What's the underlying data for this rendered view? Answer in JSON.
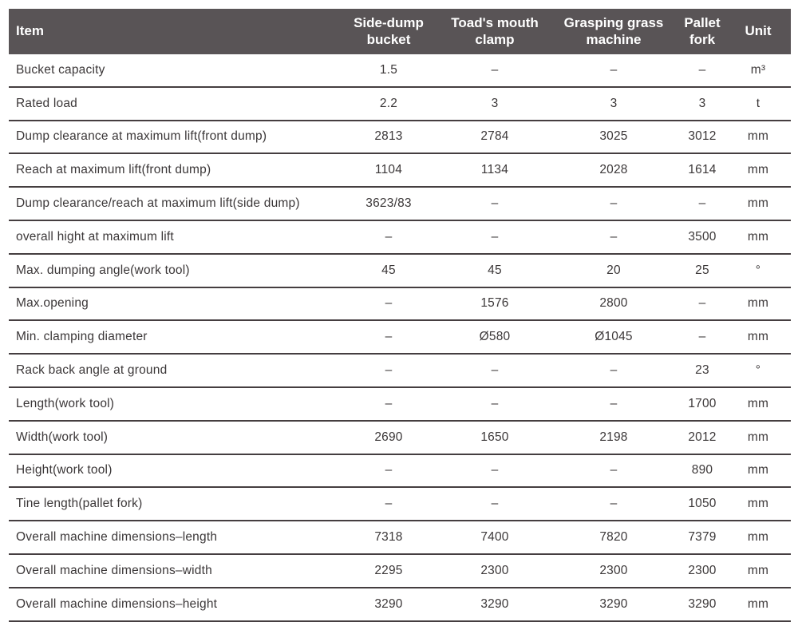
{
  "table": {
    "columns": [
      {
        "id": "item",
        "label": "Item"
      },
      {
        "id": "side_dump_bucket",
        "label": "Side-dump bucket"
      },
      {
        "id": "toads_mouth_clamp",
        "label": "Toad's mouth clamp"
      },
      {
        "id": "grasping_grass_machine",
        "label": "Grasping grass machine"
      },
      {
        "id": "pallet_fork",
        "label": "Pallet fork"
      },
      {
        "id": "unit",
        "label": "Unit"
      }
    ],
    "rows": [
      {
        "item": "Bucket capacity",
        "values": [
          "1.5",
          "–",
          "–",
          "–"
        ],
        "unit": "m³"
      },
      {
        "item": "Rated load",
        "values": [
          "2.2",
          "3",
          "3",
          "3"
        ],
        "unit": "t"
      },
      {
        "item": "Dump clearance at maximum lift(front dump)",
        "values": [
          "2813",
          "2784",
          "3025",
          "3012"
        ],
        "unit": "mm"
      },
      {
        "item": "Reach at maximum lift(front dump)",
        "values": [
          "1104",
          "1134",
          "2028",
          "1614"
        ],
        "unit": "mm"
      },
      {
        "item": "Dump clearance/reach at maximum lift(side dump)",
        "values": [
          "3623/83",
          "–",
          "–",
          "–"
        ],
        "unit": "mm"
      },
      {
        "item": "overall hight at maximum lift",
        "values": [
          "–",
          "–",
          "–",
          "3500"
        ],
        "unit": "mm"
      },
      {
        "item": "Max. dumping angle(work tool)",
        "values": [
          "45",
          "45",
          "20",
          "25"
        ],
        "unit": "°"
      },
      {
        "item": "Max.opening",
        "values": [
          "–",
          "1576",
          "2800",
          "–"
        ],
        "unit": "mm"
      },
      {
        "item": "Min. clamping diameter",
        "values": [
          "–",
          "Ø580",
          "Ø1045",
          "–"
        ],
        "unit": "mm"
      },
      {
        "item": "Rack back angle at ground",
        "values": [
          "–",
          "–",
          "–",
          "23"
        ],
        "unit": "°"
      },
      {
        "item": "Length(work tool)",
        "values": [
          "–",
          "–",
          "–",
          "1700"
        ],
        "unit": "mm"
      },
      {
        "item": "Width(work tool)",
        "values": [
          "2690",
          "1650",
          "2198",
          "2012"
        ],
        "unit": "mm"
      },
      {
        "item": "Height(work tool)",
        "values": [
          "–",
          "–",
          "–",
          "890"
        ],
        "unit": "mm"
      },
      {
        "item": "Tine length(pallet fork)",
        "values": [
          "–",
          "–",
          "–",
          "1050"
        ],
        "unit": "mm"
      },
      {
        "item": "Overall machine dimensions–length",
        "values": [
          "7318",
          "7400",
          "7820",
          "7379"
        ],
        "unit": "mm"
      },
      {
        "item": "Overall machine dimensions–width",
        "values": [
          "2295",
          "2300",
          "2300",
          "2300"
        ],
        "unit": "mm"
      },
      {
        "item": "Overall machine dimensions–height",
        "values": [
          "3290",
          "3290",
          "3290",
          "3290"
        ],
        "unit": "mm"
      }
    ]
  },
  "colors": {
    "header_background": "#595456",
    "header_text": "#ffffff",
    "body_text": "#3b3738",
    "divider": "#453e40",
    "page_background": "#ffffff"
  }
}
